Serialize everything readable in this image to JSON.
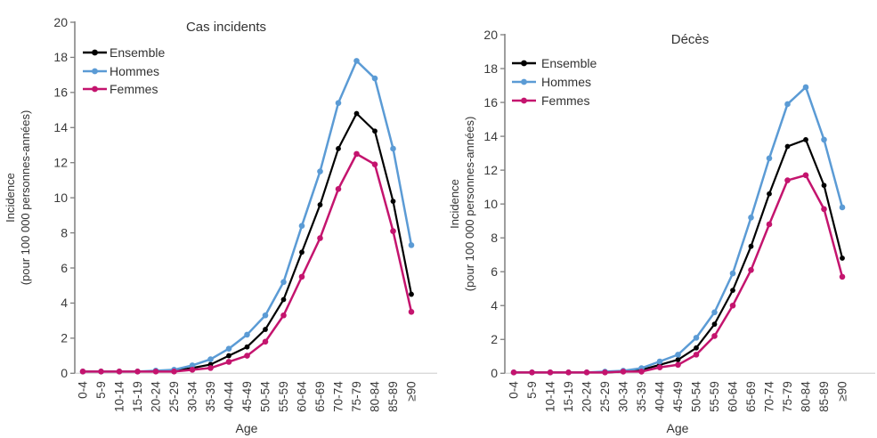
{
  "figure": {
    "background": "#ffffff",
    "axis_line_color": "#7f7f7f",
    "baseline_color": "#d9d9d9",
    "text_color": "#333333"
  },
  "chart_data": [
    {
      "type": "line",
      "title": "Cas incidents",
      "xlabel": "Age",
      "ylabel": "Incidence",
      "ylabel2": "(pour 100 000 personnes-années)",
      "ylim": [
        0,
        20
      ],
      "ytick_step": 2,
      "yticks": [
        0,
        2,
        4,
        6,
        8,
        10,
        12,
        14,
        16,
        18,
        20
      ],
      "grid": false,
      "legend_position": "top-left-inside",
      "categories": [
        "0-4",
        "5-9",
        "10-14",
        "15-19",
        "20-24",
        "25-29",
        "30-34",
        "35-39",
        "40-44",
        "45-49",
        "50-54",
        "55-59",
        "60-64",
        "65-69",
        "70-74",
        "75-79",
        "80-84",
        "85-89",
        "≥90"
      ],
      "series": [
        {
          "name": "Ensemble",
          "color": "#000000",
          "marker": "circle",
          "values": [
            0.1,
            0.1,
            0.1,
            0.1,
            0.1,
            0.15,
            0.3,
            0.5,
            1.0,
            1.5,
            2.5,
            4.2,
            6.9,
            9.6,
            12.8,
            14.8,
            13.8,
            9.8,
            4.5
          ]
        },
        {
          "name": "Hommes",
          "color": "#5b9bd5",
          "marker": "circle",
          "values": [
            0.1,
            0.1,
            0.1,
            0.1,
            0.15,
            0.2,
            0.45,
            0.8,
            1.4,
            2.2,
            3.3,
            5.2,
            8.4,
            11.5,
            15.4,
            17.8,
            16.8,
            12.8,
            7.3
          ]
        },
        {
          "name": "Femmes",
          "color": "#c4146e",
          "marker": "circle",
          "values": [
            0.1,
            0.1,
            0.1,
            0.1,
            0.1,
            0.1,
            0.2,
            0.3,
            0.65,
            1.0,
            1.8,
            3.3,
            5.5,
            7.7,
            10.5,
            12.5,
            11.9,
            8.1,
            3.5
          ]
        }
      ]
    },
    {
      "type": "line",
      "title": "Décès",
      "xlabel": "Age",
      "ylabel": "Incidence",
      "ylabel2": "(pour 100 000 personnes-années)",
      "ylim": [
        0,
        20
      ],
      "ytick_step": 2,
      "yticks": [
        0,
        2,
        4,
        6,
        8,
        10,
        12,
        14,
        16,
        18,
        20
      ],
      "grid": false,
      "legend_position": "top-left-inside",
      "categories": [
        "0-4",
        "5-9",
        "10-14",
        "15-19",
        "20-24",
        "25-29",
        "30-34",
        "35-39",
        "40-44",
        "45-49",
        "50-54",
        "55-59",
        "60-64",
        "65-69",
        "70-74",
        "75-79",
        "80-84",
        "85-89",
        "≥90"
      ],
      "series": [
        {
          "name": "Ensemble",
          "color": "#000000",
          "marker": "circle",
          "values": [
            0.05,
            0.05,
            0.05,
            0.05,
            0.05,
            0.05,
            0.1,
            0.2,
            0.5,
            0.8,
            1.5,
            2.9,
            4.9,
            7.5,
            10.6,
            13.4,
            13.8,
            11.1,
            6.8
          ]
        },
        {
          "name": "Hommes",
          "color": "#5b9bd5",
          "marker": "circle",
          "values": [
            0.05,
            0.05,
            0.05,
            0.05,
            0.05,
            0.1,
            0.15,
            0.3,
            0.7,
            1.1,
            2.1,
            3.6,
            5.9,
            9.2,
            12.7,
            15.9,
            16.9,
            13.8,
            9.8
          ]
        },
        {
          "name": "Femmes",
          "color": "#c4146e",
          "marker": "circle",
          "values": [
            0.05,
            0.05,
            0.05,
            0.05,
            0.05,
            0.05,
            0.1,
            0.1,
            0.35,
            0.5,
            1.1,
            2.2,
            4.0,
            6.1,
            8.8,
            11.4,
            11.7,
            9.7,
            5.7
          ]
        }
      ]
    }
  ]
}
